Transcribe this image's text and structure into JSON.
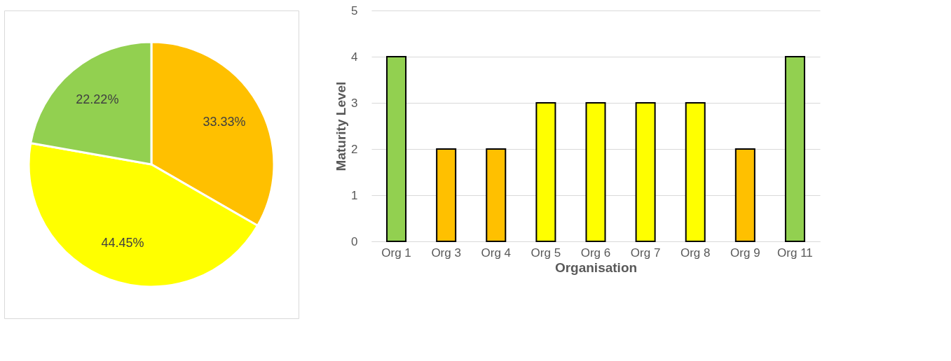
{
  "chart_data": [
    {
      "type": "pie",
      "categories": [
        null,
        null,
        null
      ],
      "values": [
        33.33,
        44.45,
        22.22
      ],
      "colors": [
        "#ffc000",
        "#ffff00",
        "#92d050"
      ],
      "value_labels": [
        "33.33%",
        "44.45%",
        "22.22%"
      ]
    },
    {
      "type": "bar",
      "categories": [
        "Org 1",
        "Org 3",
        "Org 4",
        "Org 5",
        "Org 6",
        "Org 7",
        "Org 8",
        "Org 9",
        "Org 11"
      ],
      "values": [
        4,
        2,
        2,
        3,
        3,
        3,
        3,
        2,
        4
      ],
      "colors": [
        "#92d050",
        "#ffc000",
        "#ffc000",
        "#ffff00",
        "#ffff00",
        "#ffff00",
        "#ffff00",
        "#ffc000",
        "#92d050"
      ],
      "ylim": [
        0,
        5
      ],
      "yticks": [
        0,
        1,
        2,
        3,
        4,
        5
      ],
      "grid": "y",
      "xlabel": "Organisation",
      "ylabel": "Maturity Level"
    }
  ]
}
